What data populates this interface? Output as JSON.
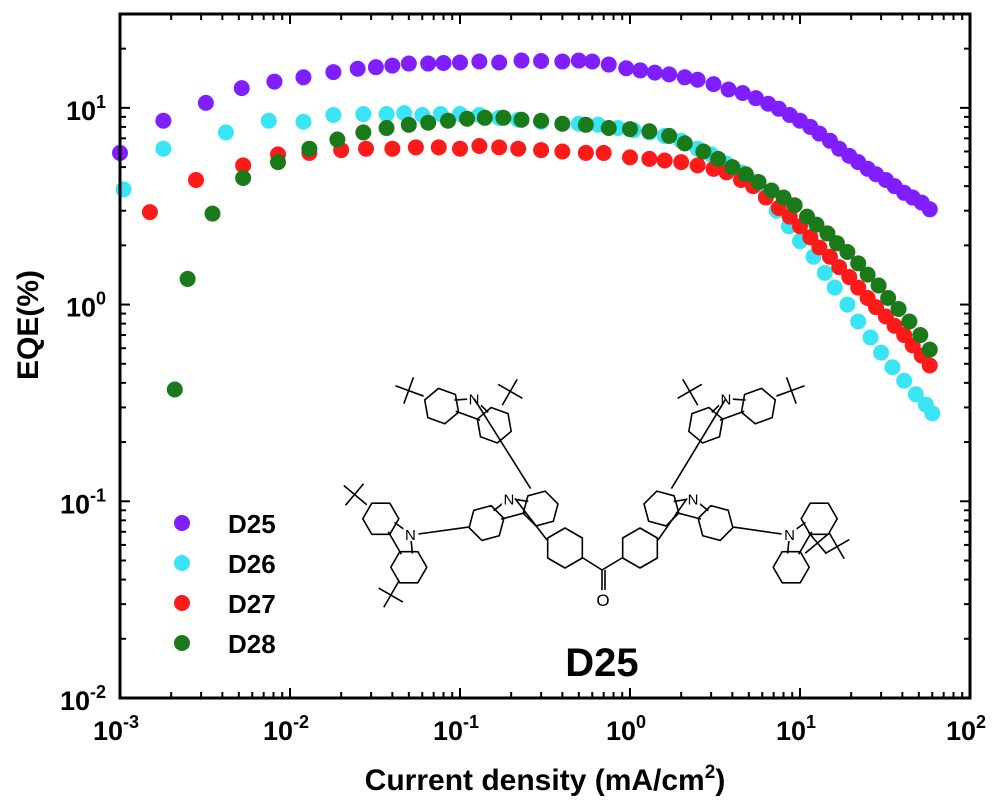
{
  "chart_data": {
    "type": "scatter",
    "xscale": "log",
    "yscale": "log",
    "xlabel": "Current density (mA/cm",
    "xlabel_sup": "2",
    "xlabel_end": ")",
    "ylabel": "EQE(%)",
    "xlim": [
      0.001,
      100
    ],
    "ylim": [
      0.01,
      30
    ],
    "x_tick_labels": [
      {
        "value": 0.001,
        "base": "10",
        "exp": "-3"
      },
      {
        "value": 0.01,
        "base": "10",
        "exp": "-2"
      },
      {
        "value": 0.1,
        "base": "10",
        "exp": "-1"
      },
      {
        "value": 1,
        "base": "10",
        "exp": "0"
      },
      {
        "value": 10,
        "base": "10",
        "exp": "1"
      },
      {
        "value": 100,
        "base": "10",
        "exp": "2"
      }
    ],
    "y_tick_labels": [
      {
        "value": 0.01,
        "base": "10",
        "exp": "-2"
      },
      {
        "value": 0.1,
        "base": "10",
        "exp": "-1"
      },
      {
        "value": 1,
        "base": "10",
        "exp": "0"
      },
      {
        "value": 10,
        "base": "10",
        "exp": "1"
      }
    ],
    "legend_position": "bottom-left",
    "series": [
      {
        "name": "D25",
        "color": "#7F1FFF",
        "points": [
          [
            0.001,
            5.9
          ],
          [
            0.0018,
            8.6
          ],
          [
            0.0032,
            10.6
          ],
          [
            0.0052,
            12.6
          ],
          [
            0.0081,
            13.6
          ],
          [
            0.012,
            14.3
          ],
          [
            0.018,
            15.2
          ],
          [
            0.025,
            15.8
          ],
          [
            0.032,
            16.1
          ],
          [
            0.04,
            16.4
          ],
          [
            0.05,
            16.8
          ],
          [
            0.065,
            16.8
          ],
          [
            0.08,
            16.9
          ],
          [
            0.1,
            17.0
          ],
          [
            0.13,
            17.2
          ],
          [
            0.17,
            17.0
          ],
          [
            0.23,
            17.4
          ],
          [
            0.3,
            17.3
          ],
          [
            0.4,
            17.2
          ],
          [
            0.5,
            17.4
          ],
          [
            0.6,
            17.2
          ],
          [
            0.75,
            16.6
          ],
          [
            0.95,
            15.9
          ],
          [
            1.15,
            15.5
          ],
          [
            1.4,
            15.1
          ],
          [
            1.7,
            14.8
          ],
          [
            2.1,
            14.3
          ],
          [
            2.5,
            13.9
          ],
          [
            3.1,
            13.2
          ],
          [
            3.8,
            12.4
          ],
          [
            4.6,
            11.9
          ],
          [
            5.5,
            11.2
          ],
          [
            6.5,
            10.5
          ],
          [
            7.5,
            9.9
          ],
          [
            8.7,
            9.2
          ],
          [
            10,
            8.6
          ],
          [
            11.5,
            8.0
          ],
          [
            13,
            7.4
          ],
          [
            15,
            6.8
          ],
          [
            17,
            6.2
          ],
          [
            19.5,
            5.7
          ],
          [
            22,
            5.3
          ],
          [
            25,
            4.9
          ],
          [
            28,
            4.6
          ],
          [
            32,
            4.3
          ],
          [
            36,
            4.0
          ],
          [
            41,
            3.7
          ],
          [
            46,
            3.5
          ],
          [
            52,
            3.3
          ],
          [
            58,
            3.05
          ]
        ]
      },
      {
        "name": "D26",
        "color": "#39E5F5",
        "points": [
          [
            0.00105,
            3.85
          ],
          [
            0.0018,
            6.2
          ],
          [
            0.0042,
            7.5
          ],
          [
            0.0075,
            8.6
          ],
          [
            0.012,
            8.5
          ],
          [
            0.018,
            9.2
          ],
          [
            0.027,
            9.3
          ],
          [
            0.037,
            9.3
          ],
          [
            0.047,
            9.4
          ],
          [
            0.06,
            9.2
          ],
          [
            0.077,
            9.3
          ],
          [
            0.1,
            9.3
          ],
          [
            0.13,
            9.2
          ],
          [
            0.17,
            8.9
          ],
          [
            0.22,
            8.7
          ],
          [
            0.3,
            8.5
          ],
          [
            0.4,
            8.3
          ],
          [
            0.5,
            8.3
          ],
          [
            0.65,
            8.2
          ],
          [
            0.85,
            7.9
          ],
          [
            1.05,
            7.7
          ],
          [
            1.3,
            7.5
          ],
          [
            1.6,
            7.2
          ],
          [
            2.0,
            6.8
          ],
          [
            2.5,
            6.2
          ],
          [
            3.0,
            5.8
          ],
          [
            3.7,
            5.2
          ],
          [
            4.5,
            4.7
          ],
          [
            5.3,
            4.2
          ],
          [
            6.3,
            3.6
          ],
          [
            7.3,
            3.0
          ],
          [
            8.6,
            2.5
          ],
          [
            10,
            2.1
          ],
          [
            12,
            1.75
          ],
          [
            14,
            1.45
          ],
          [
            16,
            1.22
          ],
          [
            19,
            1.0
          ],
          [
            22,
            0.82
          ],
          [
            26,
            0.68
          ],
          [
            30,
            0.57
          ],
          [
            35,
            0.48
          ],
          [
            41,
            0.41
          ],
          [
            48,
            0.35
          ],
          [
            55,
            0.31
          ],
          [
            60,
            0.28
          ]
        ]
      },
      {
        "name": "D27",
        "color": "#FF1A1A",
        "points": [
          [
            0.0015,
            2.95
          ],
          [
            0.0028,
            4.3
          ],
          [
            0.0053,
            5.1
          ],
          [
            0.0085,
            5.8
          ],
          [
            0.013,
            5.9
          ],
          [
            0.02,
            6.1
          ],
          [
            0.028,
            6.2
          ],
          [
            0.04,
            6.2
          ],
          [
            0.055,
            6.3
          ],
          [
            0.075,
            6.3
          ],
          [
            0.1,
            6.2
          ],
          [
            0.13,
            6.4
          ],
          [
            0.17,
            6.3
          ],
          [
            0.22,
            6.2
          ],
          [
            0.3,
            6.1
          ],
          [
            0.4,
            6.0
          ],
          [
            0.55,
            5.9
          ],
          [
            0.7,
            5.9
          ],
          [
            1.0,
            5.6
          ],
          [
            1.3,
            5.5
          ],
          [
            1.6,
            5.4
          ],
          [
            2.0,
            5.3
          ],
          [
            2.5,
            5.1
          ],
          [
            3.1,
            4.9
          ],
          [
            3.7,
            4.7
          ],
          [
            4.5,
            4.3
          ],
          [
            5.3,
            4.0
          ],
          [
            6.3,
            3.5
          ],
          [
            7.5,
            3.1
          ],
          [
            8.7,
            2.8
          ],
          [
            10,
            2.5
          ],
          [
            11.5,
            2.2
          ],
          [
            13,
            1.95
          ],
          [
            15,
            1.75
          ],
          [
            17,
            1.55
          ],
          [
            19.5,
            1.38
          ],
          [
            22,
            1.22
          ],
          [
            25,
            1.08
          ],
          [
            28,
            0.97
          ],
          [
            32,
            0.87
          ],
          [
            36,
            0.78
          ],
          [
            41,
            0.7
          ],
          [
            46,
            0.62
          ],
          [
            52,
            0.55
          ],
          [
            58,
            0.49
          ]
        ]
      },
      {
        "name": "D28",
        "color": "#1A7A1A",
        "points": [
          [
            0.0021,
            0.37
          ],
          [
            0.0025,
            1.35
          ],
          [
            0.0035,
            2.9
          ],
          [
            0.0053,
            4.4
          ],
          [
            0.0085,
            5.3
          ],
          [
            0.013,
            6.2
          ],
          [
            0.019,
            6.9
          ],
          [
            0.027,
            7.5
          ],
          [
            0.037,
            7.9
          ],
          [
            0.05,
            8.2
          ],
          [
            0.065,
            8.4
          ],
          [
            0.085,
            8.6
          ],
          [
            0.11,
            8.8
          ],
          [
            0.14,
            8.9
          ],
          [
            0.18,
            8.9
          ],
          [
            0.23,
            8.7
          ],
          [
            0.3,
            8.6
          ],
          [
            0.4,
            8.3
          ],
          [
            0.55,
            8.2
          ],
          [
            0.75,
            7.9
          ],
          [
            1.0,
            7.8
          ],
          [
            1.3,
            7.6
          ],
          [
            1.7,
            7.2
          ],
          [
            2.1,
            6.6
          ],
          [
            2.7,
            6.0
          ],
          [
            3.3,
            5.5
          ],
          [
            4.0,
            5.0
          ],
          [
            4.8,
            4.6
          ],
          [
            5.7,
            4.2
          ],
          [
            6.8,
            3.8
          ],
          [
            8.0,
            3.5
          ],
          [
            9.3,
            3.2
          ],
          [
            11,
            2.8
          ],
          [
            12.5,
            2.55
          ],
          [
            14.5,
            2.3
          ],
          [
            16.5,
            2.05
          ],
          [
            19,
            1.85
          ],
          [
            22,
            1.62
          ],
          [
            25,
            1.42
          ],
          [
            29,
            1.25
          ],
          [
            33,
            1.08
          ],
          [
            38,
            0.95
          ],
          [
            44,
            0.82
          ],
          [
            51,
            0.7
          ],
          [
            58,
            0.59
          ]
        ]
      }
    ],
    "annotation": {
      "label": "D25",
      "atom_N": "N",
      "atom_O": "O"
    }
  }
}
